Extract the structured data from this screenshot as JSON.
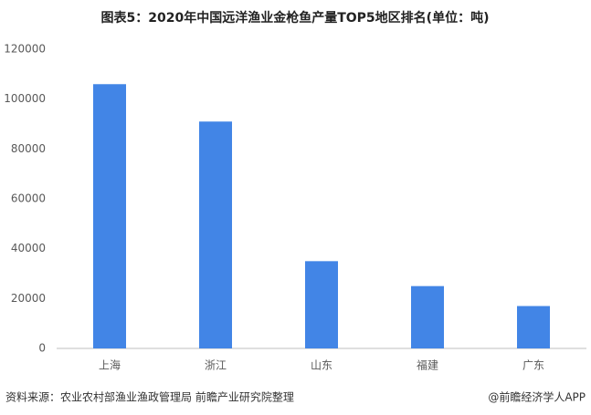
{
  "chart_data": {
    "type": "bar",
    "title": "图表5：2020年中国远洋渔业金枪鱼产量TOP5地区排名(单位：吨)",
    "categories": [
      "上海",
      "浙江",
      "山东",
      "福建",
      "广东"
    ],
    "values": [
      106000,
      91000,
      35000,
      25000,
      17000
    ],
    "color": "#4285e6",
    "ylim": [
      0,
      120000
    ],
    "yticks": [
      0,
      20000,
      40000,
      60000,
      80000,
      100000,
      120000
    ],
    "grid": false,
    "source": "资料来源：农业农村部渔业渔政管理局 前瞻产业研究院整理",
    "credit": "@前瞻经济学人APP"
  }
}
